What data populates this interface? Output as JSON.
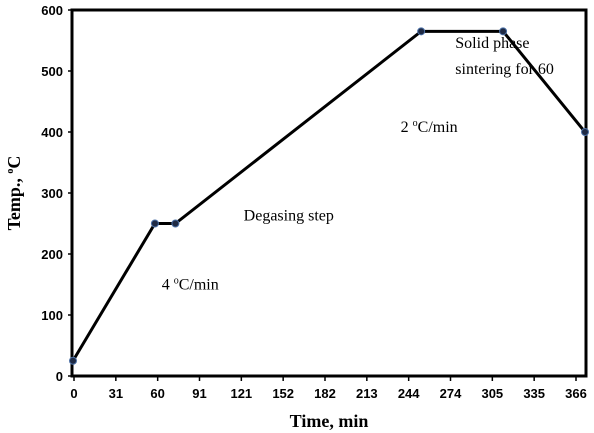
{
  "chart_data": {
    "type": "line",
    "xlabel": "Time, min",
    "ylabel": "Temp., oC",
    "ylabel_parts": {
      "main": "Temp., ",
      "sup": "o",
      "unit": "C"
    },
    "xlim": [
      0,
      375
    ],
    "ylim": [
      0,
      600
    ],
    "x_ticks": [
      "0",
      "31",
      "60",
      "91",
      "121",
      "152",
      "182",
      "213",
      "244",
      "274",
      "305",
      "335",
      "366"
    ],
    "y_ticks": [
      "0",
      "100",
      "200",
      "300",
      "400",
      "500",
      "600"
    ],
    "grid": false,
    "series": [
      {
        "points": [
          {
            "x": 0,
            "y": 25
          },
          {
            "x": 60,
            "y": 250
          },
          {
            "x": 75,
            "y": 250
          },
          {
            "x": 255,
            "y": 565
          },
          {
            "x": 315,
            "y": 565
          },
          {
            "x": 375,
            "y": 400
          }
        ]
      }
    ],
    "annotations": [
      {
        "pre": "4 ",
        "sup": "o",
        "post": "C/min",
        "x": 65,
        "y": 142
      },
      {
        "pre": "Degasing step",
        "sup": "",
        "post": "",
        "x": 125,
        "y": 255
      },
      {
        "pre": "2 ",
        "sup": "o",
        "post": "C/min",
        "x": 240,
        "y": 400
      },
      {
        "pre": "Solid phase",
        "sup": "",
        "post": "",
        "x": 280,
        "y": 538
      },
      {
        "pre": "sintering for 60",
        "sup": "",
        "post": "",
        "x": 280,
        "y": 495
      }
    ]
  }
}
